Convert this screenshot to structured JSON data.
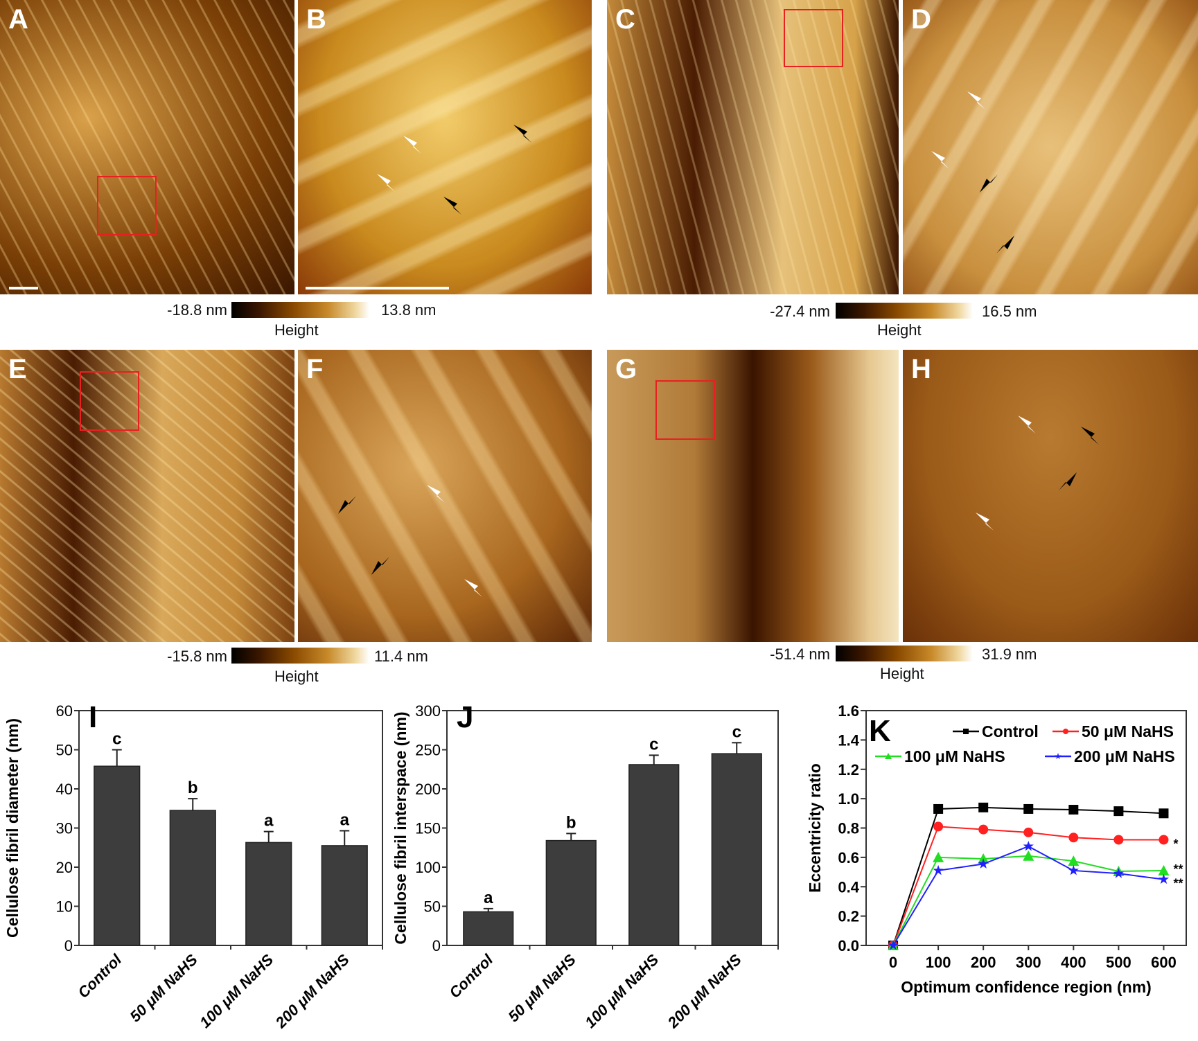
{
  "panels": [
    {
      "label": "A"
    },
    {
      "label": "B"
    },
    {
      "label": "C"
    },
    {
      "label": "D"
    },
    {
      "label": "E"
    },
    {
      "label": "F"
    },
    {
      "label": "G"
    },
    {
      "label": "H"
    }
  ],
  "colorbars": [
    {
      "min": "-18.8 nm",
      "max": "13.8 nm",
      "title": "Height"
    },
    {
      "min": "-27.4 nm",
      "max": "16.5 nm",
      "title": "Height"
    },
    {
      "min": "-15.8 nm",
      "max": "11.4 nm",
      "title": "Height"
    },
    {
      "min": "-51.4 nm",
      "max": "31.9 nm",
      "title": "Height"
    }
  ],
  "colors": {
    "bar": "#3d3d3d",
    "box": "#e82020",
    "control": "#000000",
    "nahs50": "#ff2020",
    "nahs100": "#22dd22",
    "nahs200": "#2020ff"
  },
  "chart_data": [
    {
      "type": "bar",
      "panel": "I",
      "categories": [
        "Control",
        "50 μM NaHS",
        "100 μM NaHS",
        "200 μM NaHS"
      ],
      "values": [
        45.8,
        34.5,
        26.3,
        25.5
      ],
      "errors": [
        4.2,
        3.0,
        2.8,
        3.8
      ],
      "letters": [
        "c",
        "b",
        "a",
        "a"
      ],
      "ylabel": "Cellulose fibril diameter (nm)",
      "ylim": [
        0,
        60
      ],
      "yticks": [
        0,
        10,
        20,
        30,
        40,
        50,
        60
      ]
    },
    {
      "type": "bar",
      "panel": "J",
      "categories": [
        "Control",
        "50 μM NaHS",
        "100 μM NaHS",
        "200 μM NaHS"
      ],
      "values": [
        43,
        134,
        231,
        245
      ],
      "errors": [
        4,
        9,
        12,
        14
      ],
      "letters": [
        "a",
        "b",
        "c",
        "c"
      ],
      "ylabel": "Cellulose fibril interspace (nm)",
      "ylim": [
        0,
        300
      ],
      "yticks": [
        0,
        50,
        100,
        150,
        200,
        250,
        300
      ]
    },
    {
      "type": "line",
      "panel": "K",
      "x": [
        0,
        100,
        200,
        300,
        400,
        500,
        600
      ],
      "xlabel": "Optimum confidence region (nm)",
      "ylabel": "Eccentricity ratio",
      "ylim": [
        0,
        1.6
      ],
      "xlim": [
        -60,
        650
      ],
      "yticks": [
        0.0,
        0.2,
        0.4,
        0.6,
        0.8,
        1.0,
        1.2,
        1.4,
        1.6
      ],
      "xticks": [
        0,
        100,
        200,
        300,
        400,
        500,
        600
      ],
      "legend": "top-right",
      "series": [
        {
          "name": "Control",
          "marker": "square",
          "color": "#000000",
          "values": [
            0,
            0.93,
            0.94,
            0.93,
            0.925,
            0.915,
            0.9
          ],
          "annotation": ""
        },
        {
          "name": "50 μM NaHS",
          "marker": "circle",
          "color": "#ff2020",
          "values": [
            0,
            0.81,
            0.79,
            0.77,
            0.735,
            0.72,
            0.72
          ],
          "annotation": "*"
        },
        {
          "name": "100 μM NaHS",
          "marker": "triangle",
          "color": "#22dd22",
          "values": [
            0,
            0.6,
            0.59,
            0.61,
            0.575,
            0.505,
            0.51
          ],
          "annotation": "**"
        },
        {
          "name": "200 μM NaHS",
          "marker": "star",
          "color": "#2020ff",
          "values": [
            0,
            0.51,
            0.555,
            0.675,
            0.51,
            0.49,
            0.45
          ],
          "annotation": "**"
        }
      ]
    }
  ]
}
